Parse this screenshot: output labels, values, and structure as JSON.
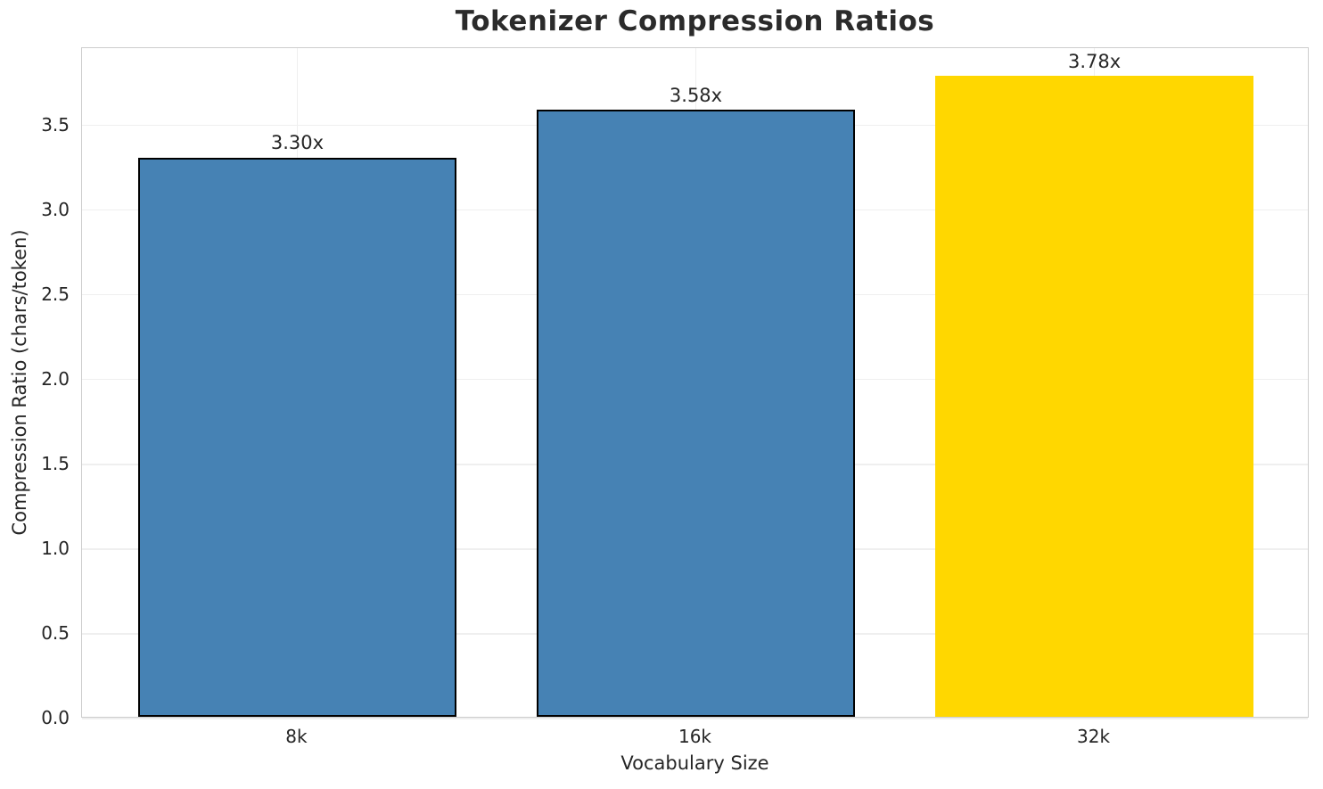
{
  "chart_data": {
    "type": "bar",
    "title": "Tokenizer Compression Ratios",
    "xlabel": "Vocabulary Size",
    "ylabel": "Compression Ratio (chars/token)",
    "categories": [
      "8k",
      "16k",
      "32k"
    ],
    "values": [
      3.3,
      3.58,
      3.78
    ],
    "bar_labels": [
      "3.30x",
      "3.58x",
      "3.78x"
    ],
    "ylim": [
      0,
      3.955
    ],
    "ytick_labels": [
      "0.0",
      "0.5",
      "1.0",
      "1.5",
      "2.0",
      "2.5",
      "3.0",
      "3.5"
    ],
    "grid": true,
    "legend_position": "none",
    "bar_colors": [
      "#4682b4",
      "#4682b4",
      "#ffd700"
    ],
    "bar_edge_widths": [
      2,
      2,
      0
    ],
    "bar_edge_color": "#000000",
    "highlight_index": 2,
    "grid_color": "#efefef",
    "spine_color": "#cdcdcd",
    "text_color": "#262626"
  }
}
